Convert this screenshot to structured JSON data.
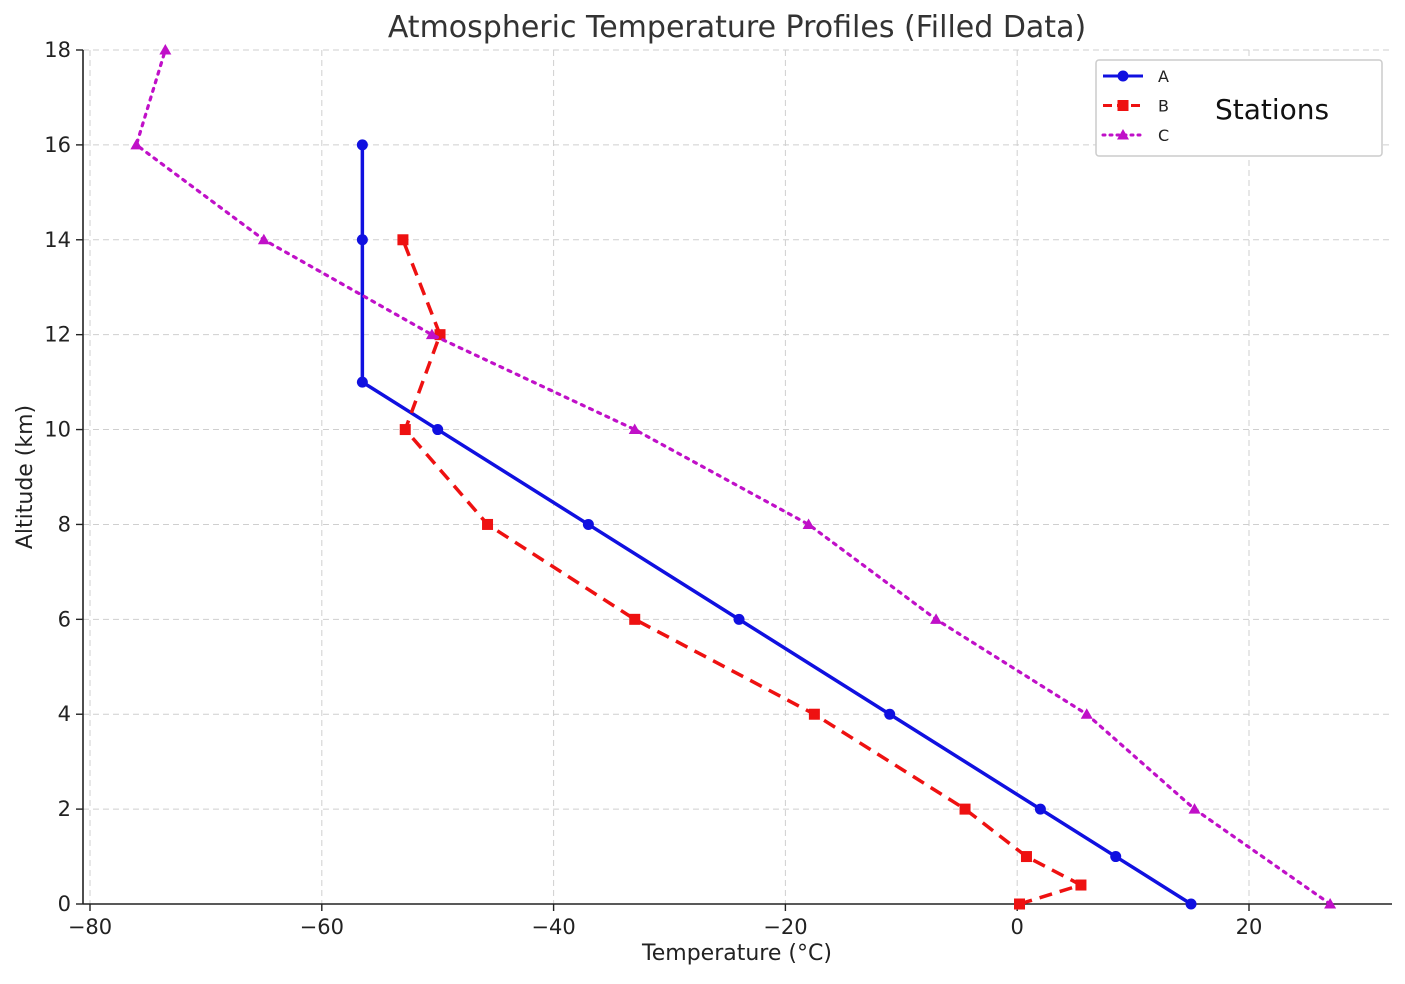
{
  "chart_data": {
    "type": "line",
    "title": "Atmospheric Temperature Profiles (Filled Data)",
    "xlabel": "Temperature (°C)",
    "ylabel": "Altitude (km)",
    "xlim": [
      -80,
      32
    ],
    "ylim": [
      0,
      18
    ],
    "xticks": [
      -80,
      -60,
      -40,
      -20,
      0,
      20
    ],
    "yticks": [
      0,
      2,
      4,
      6,
      8,
      10,
      12,
      14,
      16,
      18
    ],
    "xtick_labels": [
      "−80",
      "−60",
      "−40",
      "−20",
      "0",
      "20"
    ],
    "ytick_labels": [
      "0",
      "2",
      "4",
      "6",
      "8",
      "10",
      "12",
      "14",
      "16",
      "18"
    ],
    "grid": true,
    "legend": {
      "placement": "top-right",
      "title": "Stations"
    },
    "series": [
      {
        "name": "A",
        "color": "#1010e0",
        "line_style": "solid",
        "marker": "circle",
        "x": [
          15.0,
          8.5,
          2.0,
          -11.0,
          -24.0,
          -37.0,
          -50.0,
          -56.5,
          -56.5,
          -56.5
        ],
        "y": [
          0,
          1,
          2,
          4,
          6,
          8,
          10,
          11,
          14,
          16
        ]
      },
      {
        "name": "B",
        "color": "#ee1111",
        "line_style": "dashed",
        "marker": "square",
        "x": [
          0.2,
          5.5,
          0.8,
          -4.5,
          -17.5,
          -33.0,
          -45.7,
          -52.8,
          -49.8,
          -53.0
        ],
        "y": [
          0,
          0.4,
          1,
          2,
          4,
          6,
          8,
          10,
          12,
          14
        ]
      },
      {
        "name": "C",
        "color": "#c010c8",
        "line_style": "dotted",
        "marker": "triangle",
        "x": [
          27.0,
          15.3,
          6.0,
          -7.0,
          -18.0,
          -33.0,
          -50.5,
          -65.0,
          -76.0,
          -73.5
        ],
        "y": [
          0,
          2,
          4,
          6,
          8,
          10,
          12,
          14,
          16,
          18
        ]
      }
    ]
  }
}
